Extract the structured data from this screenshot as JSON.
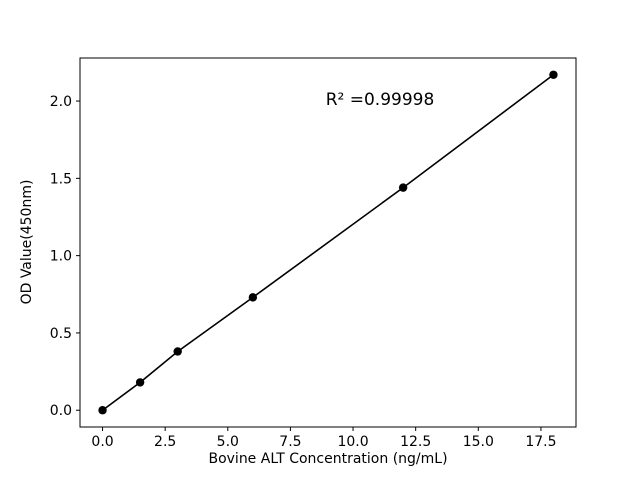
{
  "chart_data": {
    "type": "scatter",
    "title": "",
    "xlabel": "Bovine ALT Concentration (ng/mL)",
    "ylabel": "OD Value(450nm)",
    "annotation": "R² =0.99998",
    "x": [
      0,
      1.5,
      3,
      6,
      12,
      18
    ],
    "y": [
      0.0,
      0.18,
      0.38,
      0.73,
      1.44,
      2.17
    ],
    "xtick_labels": [
      "0.0",
      "2.5",
      "5.0",
      "7.5",
      "10.0",
      "12.5",
      "15.0",
      "17.5"
    ],
    "ytick_labels": [
      "0.0",
      "0.5",
      "1.0",
      "1.5",
      "2.0"
    ],
    "xlim": [
      -0.9,
      18.9
    ],
    "ylim": [
      -0.1085,
      2.2785
    ],
    "grid": "off",
    "legend": "none",
    "line_color": "#000000",
    "marker_color": "#000000",
    "axes_color": "#000000",
    "background_color": "#ffffff"
  }
}
